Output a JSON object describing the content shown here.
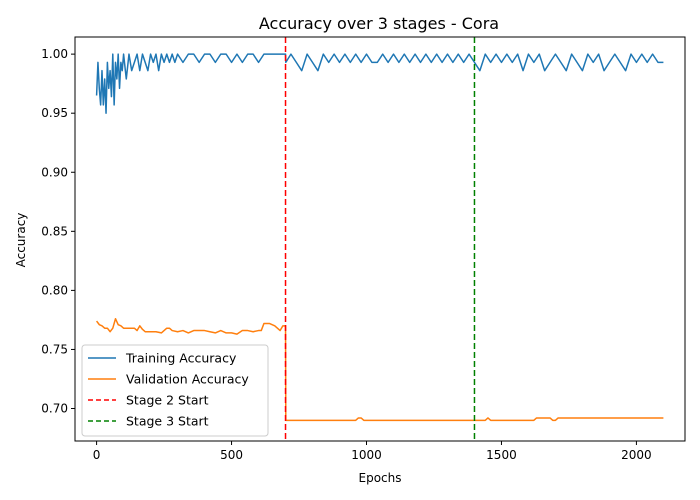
{
  "chart_data": {
    "type": "line",
    "title": "Accuracy over 3 stages - Cora",
    "xlabel": "Epochs",
    "ylabel": "Accuracy",
    "xlim": [
      -80,
      2180
    ],
    "ylim": [
      0.6725,
      1.0145
    ],
    "x_ticks": [
      0,
      500,
      1000,
      1500,
      2000
    ],
    "y_ticks": [
      0.7,
      0.75,
      0.8,
      0.85,
      0.9,
      0.95,
      1.0
    ],
    "grid": false,
    "legend_position": "lower-left",
    "series": [
      {
        "name": "Training Accuracy",
        "color": "#1f77b4",
        "style": "solid",
        "x": [
          0,
          5,
          10,
          15,
          20,
          25,
          30,
          35,
          40,
          45,
          50,
          55,
          60,
          65,
          70,
          75,
          80,
          85,
          90,
          95,
          100,
          110,
          120,
          130,
          140,
          150,
          160,
          170,
          180,
          190,
          200,
          210,
          220,
          230,
          240,
          250,
          260,
          270,
          280,
          290,
          300,
          320,
          340,
          360,
          380,
          400,
          420,
          440,
          460,
          480,
          500,
          520,
          540,
          560,
          580,
          600,
          620,
          640,
          660,
          680,
          700,
          701,
          720,
          740,
          760,
          780,
          800,
          820,
          840,
          860,
          880,
          900,
          920,
          940,
          960,
          980,
          1000,
          1020,
          1040,
          1060,
          1080,
          1100,
          1120,
          1140,
          1160,
          1180,
          1200,
          1220,
          1240,
          1260,
          1280,
          1300,
          1320,
          1340,
          1360,
          1380,
          1400,
          1420,
          1440,
          1460,
          1480,
          1500,
          1520,
          1540,
          1560,
          1580,
          1600,
          1620,
          1640,
          1660,
          1680,
          1700,
          1720,
          1740,
          1760,
          1780,
          1800,
          1820,
          1840,
          1860,
          1880,
          1900,
          1920,
          1940,
          1960,
          1980,
          2000,
          2020,
          2040,
          2060,
          2080,
          2100
        ],
        "y": [
          0.965,
          0.993,
          0.971,
          0.957,
          0.986,
          0.957,
          0.979,
          0.95,
          0.993,
          0.971,
          0.986,
          0.964,
          1.0,
          0.957,
          0.993,
          0.979,
          1.0,
          0.971,
          0.993,
          0.986,
          1.0,
          0.979,
          1.0,
          0.986,
          0.993,
          1.0,
          0.986,
          1.0,
          0.993,
          0.986,
          1.0,
          0.993,
          1.0,
          0.986,
          1.0,
          0.993,
          1.0,
          0.993,
          1.0,
          0.993,
          1.0,
          0.993,
          1.0,
          1.0,
          0.993,
          1.0,
          1.0,
          0.993,
          1.0,
          1.0,
          0.993,
          1.0,
          0.993,
          1.0,
          1.0,
          0.993,
          1.0,
          1.0,
          1.0,
          1.0,
          1.0,
          0.993,
          1.0,
          0.993,
          0.986,
          1.0,
          0.993,
          0.986,
          1.0,
          0.993,
          1.0,
          0.993,
          1.0,
          0.993,
          1.0,
          0.993,
          1.0,
          0.993,
          0.993,
          1.0,
          0.993,
          1.0,
          0.993,
          1.0,
          0.993,
          1.0,
          0.993,
          1.0,
          0.993,
          1.0,
          0.993,
          1.0,
          0.993,
          1.0,
          0.993,
          1.0,
          0.993,
          0.986,
          1.0,
          0.993,
          1.0,
          0.993,
          1.0,
          0.993,
          1.0,
          0.986,
          1.0,
          0.993,
          1.0,
          0.986,
          0.993,
          1.0,
          0.993,
          0.986,
          1.0,
          0.993,
          0.986,
          1.0,
          0.993,
          1.0,
          0.986,
          0.993,
          1.0,
          0.993,
          0.986,
          1.0,
          0.993,
          1.0,
          0.993,
          1.0,
          0.993,
          0.993
        ]
      },
      {
        "name": "Validation Accuracy",
        "color": "#ff7f0e",
        "style": "solid",
        "x": [
          0,
          10,
          20,
          30,
          40,
          50,
          60,
          70,
          80,
          90,
          100,
          120,
          140,
          150,
          160,
          170,
          180,
          200,
          220,
          240,
          260,
          270,
          280,
          300,
          320,
          340,
          360,
          380,
          400,
          420,
          440,
          460,
          480,
          500,
          520,
          540,
          560,
          580,
          600,
          610,
          620,
          640,
          660,
          680,
          690,
          700,
          701,
          720,
          760,
          800,
          850,
          900,
          960,
          970,
          980,
          990,
          1000,
          1100,
          1200,
          1300,
          1400,
          1430,
          1440,
          1450,
          1460,
          1500,
          1550,
          1600,
          1620,
          1630,
          1640,
          1650,
          1680,
          1690,
          1700,
          1710,
          1750,
          1800,
          1900,
          2000,
          2100
        ],
        "y": [
          0.774,
          0.771,
          0.77,
          0.768,
          0.768,
          0.765,
          0.768,
          0.776,
          0.771,
          0.77,
          0.768,
          0.768,
          0.768,
          0.766,
          0.77,
          0.767,
          0.765,
          0.765,
          0.765,
          0.764,
          0.768,
          0.768,
          0.766,
          0.765,
          0.766,
          0.764,
          0.766,
          0.766,
          0.766,
          0.765,
          0.764,
          0.766,
          0.764,
          0.764,
          0.763,
          0.766,
          0.766,
          0.765,
          0.766,
          0.766,
          0.772,
          0.772,
          0.77,
          0.766,
          0.77,
          0.77,
          0.69,
          0.69,
          0.69,
          0.69,
          0.69,
          0.69,
          0.69,
          0.692,
          0.692,
          0.69,
          0.69,
          0.69,
          0.69,
          0.69,
          0.69,
          0.69,
          0.69,
          0.692,
          0.69,
          0.69,
          0.69,
          0.69,
          0.69,
          0.692,
          0.692,
          0.692,
          0.692,
          0.69,
          0.69,
          0.692,
          0.692,
          0.692,
          0.692,
          0.692,
          0.692
        ]
      },
      {
        "name": "Stage 2 Start",
        "color": "#ff0000",
        "style": "dashed",
        "x": [
          700,
          700
        ]
      },
      {
        "name": "Stage 3 Start",
        "color": "#008000",
        "style": "dashed",
        "x": [
          1400,
          1400
        ]
      }
    ]
  }
}
